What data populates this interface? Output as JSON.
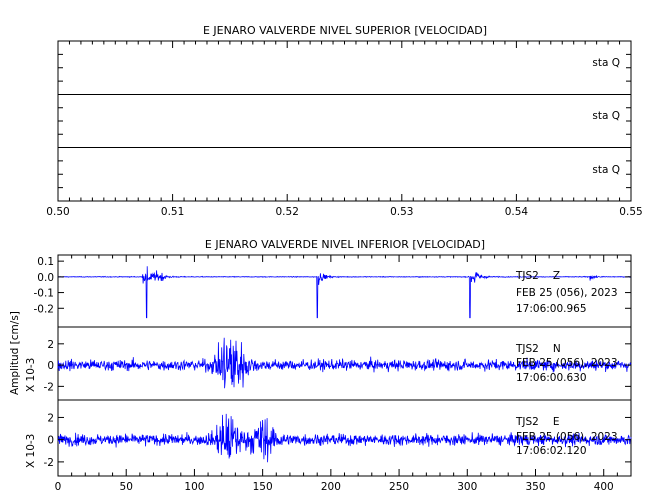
{
  "chart_data": [
    {
      "type": "line",
      "title": "E JENARO VALVERDE NIVEL SUPERIOR [VELOCIDAD]",
      "xlim": [
        0.5,
        0.55
      ],
      "xticks": [
        "0.50",
        "0.51",
        "0.52",
        "0.53",
        "0.54",
        "0.55"
      ],
      "ylabel": "",
      "panels": [
        {
          "label": "sta Q",
          "values": []
        },
        {
          "label": "sta Q",
          "values": []
        },
        {
          "label": "sta Q",
          "values": []
        }
      ]
    },
    {
      "type": "line",
      "title": "E JENARO VALVERDE NIVEL INFERIOR [VELOCIDAD]",
      "xlim": [
        0,
        420
      ],
      "xticks": [
        "0",
        "50",
        "100",
        "150",
        "200",
        "250",
        "300",
        "350",
        "400"
      ],
      "ylabel": "Amplitud [cm/s]",
      "panels": [
        {
          "station": "TJS2",
          "component": "Z",
          "date": "FEB 25 (056), 2023",
          "time": "17:06:00.965",
          "ylim": [
            -0.3,
            0.12
          ],
          "yticks": [
            "0.1",
            "0.0",
            "-0.1",
            "-0.2"
          ],
          "scale": "",
          "events": [
            {
              "t": 62,
              "amp": 0.09
            },
            {
              "t": 65,
              "amp": 0.1
            },
            {
              "t": 70,
              "amp": 0.07
            },
            {
              "t": 75,
              "amp": 0.05
            },
            {
              "t": 190,
              "amp": 0.12
            },
            {
              "t": 302,
              "amp": 0.11
            },
            {
              "t": 305,
              "amp": 0.08
            },
            {
              "t": 390,
              "amp": 0.03
            }
          ]
        },
        {
          "station": "TJS2",
          "component": "N",
          "date": "FEB 25 (056), 2023",
          "time": "17:06:00.630",
          "ylim": [
            -3,
            3.3
          ],
          "yticks": [
            "2",
            "0",
            "-2"
          ],
          "scale": "X 10-3",
          "events": [
            {
              "t": 125,
              "amp": 3.0
            },
            {
              "t": 130,
              "amp": 2.5
            }
          ]
        },
        {
          "station": "TJS2",
          "component": "E",
          "date": "FEB 25 (056), 2023",
          "time": "17:06:02.120",
          "ylim": [
            -3,
            3.3
          ],
          "yticks": [
            "2",
            "0",
            "-2"
          ],
          "scale": "X 10-3",
          "events": [
            {
              "t": 125,
              "amp": 3.0
            },
            {
              "t": 150,
              "amp": 2.5
            }
          ]
        }
      ]
    }
  ]
}
